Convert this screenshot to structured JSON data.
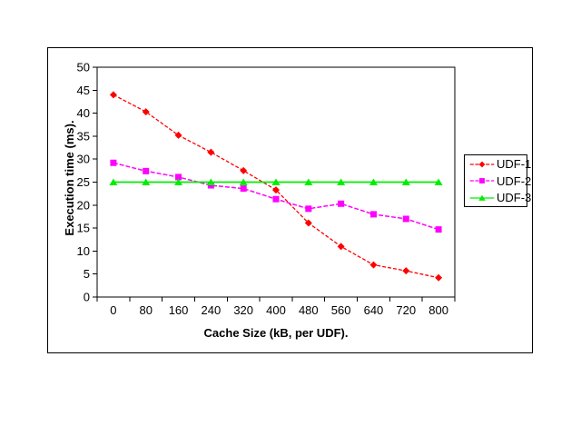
{
  "chart_data": {
    "type": "line",
    "xlabel": "Cache Size (kB, per UDF).",
    "ylabel": "Execution time (ms).",
    "categories": [
      "0",
      "80",
      "160",
      "240",
      "320",
      "400",
      "480",
      "560",
      "640",
      "720",
      "800"
    ],
    "series": [
      {
        "name": "UDF-1",
        "color": "#ff0000",
        "marker": "diamond",
        "line_style": "dashed",
        "values": [
          44,
          40.3,
          35.2,
          31.5,
          27.5,
          23.3,
          16.1,
          11,
          7,
          5.7,
          4.2
        ]
      },
      {
        "name": "UDF-2",
        "color": "#ff00ff",
        "marker": "square",
        "line_style": "dashed",
        "values": [
          29.2,
          27.4,
          26.1,
          24.3,
          23.6,
          21.3,
          19.2,
          20.3,
          18,
          17,
          14.7
        ]
      },
      {
        "name": "UDF-3",
        "color": "#00ee00",
        "marker": "triangle",
        "line_style": "solid",
        "values": [
          25,
          25,
          25,
          25,
          25,
          25,
          25,
          25,
          25,
          25,
          25
        ]
      }
    ],
    "ylim": [
      0,
      50
    ],
    "y_ticks": [
      0,
      5,
      10,
      15,
      20,
      25,
      30,
      35,
      40,
      45,
      50
    ],
    "grid": false,
    "legend_position": "right",
    "axis_color": "#000000",
    "background": "#ffffff"
  }
}
